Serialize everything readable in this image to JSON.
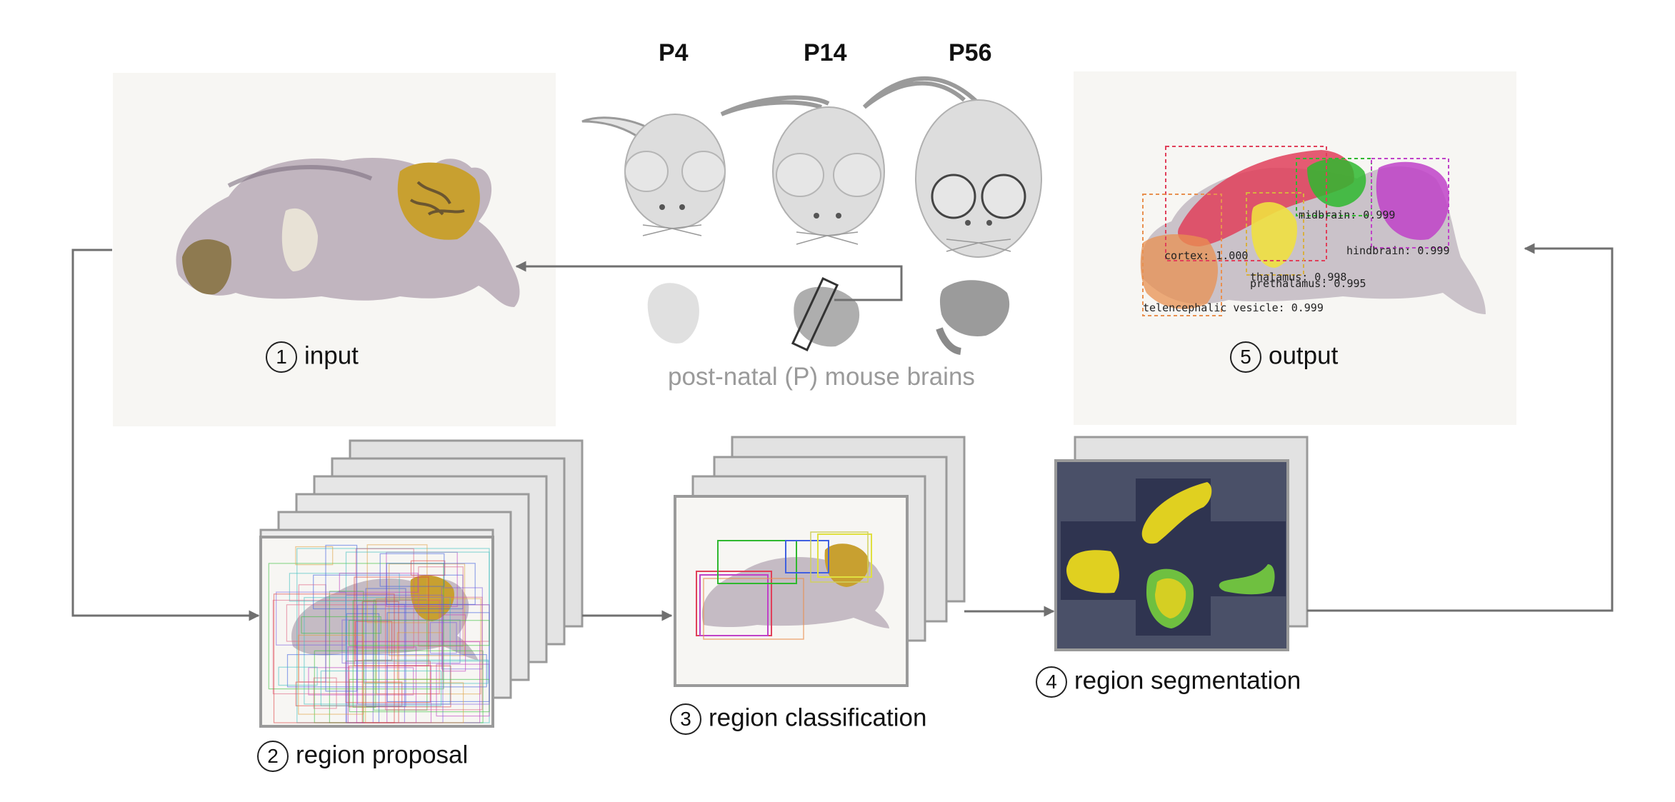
{
  "mice": {
    "ages": [
      "P4",
      "P14",
      "P56"
    ],
    "caption": "post-natal (P) mouse brains"
  },
  "steps": {
    "input": {
      "number": "1",
      "label": "input"
    },
    "proposal": {
      "number": "2",
      "label": "region proposal"
    },
    "classification": {
      "number": "3",
      "label": "region classification"
    },
    "segmentation": {
      "number": "4",
      "label": "region segmentation"
    },
    "output": {
      "number": "5",
      "label": "output"
    }
  },
  "detections": [
    {
      "label": "cortex: 1.000",
      "color": "#e0405a"
    },
    {
      "label": "midbrain: 0.999",
      "color": "#2fb82f"
    },
    {
      "label": "hindbrain: 0.999",
      "color": "#c042c8"
    },
    {
      "label": "thalamus: 0.998",
      "color": "#f0e040"
    },
    {
      "label": "prethalamus: 0.995",
      "color": "#d8b040"
    },
    {
      "label": "telencephalic vesicle: 0.999",
      "color": "#e89050"
    }
  ],
  "colors": {
    "arrow": "#707070",
    "panel_bg": "#f7f6f3",
    "segmentation_bg": "#4a5068",
    "seg_yellow": "#e0d020",
    "seg_green": "#6fc040"
  }
}
